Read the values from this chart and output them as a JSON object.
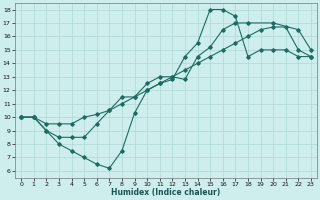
{
  "xlabel": "Humidex (Indice chaleur)",
  "background_color": "#cdeeed",
  "grid_color": "#b0d8d4",
  "line_color": "#1e6b62",
  "xlim": [
    -0.5,
    23.5
  ],
  "ylim": [
    5.5,
    18.5
  ],
  "yticks": [
    6,
    7,
    8,
    9,
    10,
    11,
    12,
    13,
    14,
    15,
    16,
    17,
    18
  ],
  "xticks": [
    0,
    1,
    2,
    3,
    4,
    5,
    6,
    7,
    8,
    9,
    10,
    11,
    12,
    13,
    14,
    15,
    16,
    17,
    18,
    19,
    20,
    21,
    22,
    23
  ],
  "line1_x": [
    0,
    1,
    2,
    3,
    4,
    5,
    6,
    7,
    8,
    9,
    10,
    11,
    12,
    13,
    14,
    15,
    16,
    17,
    18,
    19,
    20,
    21,
    22,
    23
  ],
  "line1_y": [
    10,
    10,
    9,
    8,
    7.5,
    7,
    6.5,
    6.2,
    7.5,
    10.3,
    12.0,
    12.5,
    12.8,
    14.5,
    15.5,
    18.0,
    18.0,
    17.5,
    14.5,
    15.0,
    15.0,
    15.0,
    14.5,
    14.5
  ],
  "line2_x": [
    0,
    1,
    2,
    3,
    4,
    5,
    6,
    7,
    8,
    9,
    10,
    11,
    12,
    13,
    14,
    15,
    16,
    17,
    18,
    20,
    22,
    23
  ],
  "line2_y": [
    10,
    10,
    9,
    8.5,
    8.5,
    8.5,
    9.5,
    10.5,
    11.5,
    11.5,
    12.5,
    13.0,
    13.0,
    12.8,
    14.5,
    15.2,
    16.5,
    17.0,
    17.0,
    17.0,
    16.5,
    15.0
  ],
  "line3_x": [
    0,
    1,
    2,
    3,
    4,
    5,
    6,
    7,
    8,
    9,
    10,
    11,
    12,
    13,
    14,
    15,
    16,
    17,
    18,
    19,
    20,
    21,
    22,
    23
  ],
  "line3_y": [
    10,
    10,
    9.5,
    9.5,
    9.5,
    10.0,
    10.2,
    10.5,
    11.0,
    11.5,
    12.0,
    12.5,
    13.0,
    13.5,
    14.0,
    14.5,
    15.0,
    15.5,
    16.0,
    16.5,
    16.7,
    16.7,
    15.0,
    14.5
  ]
}
